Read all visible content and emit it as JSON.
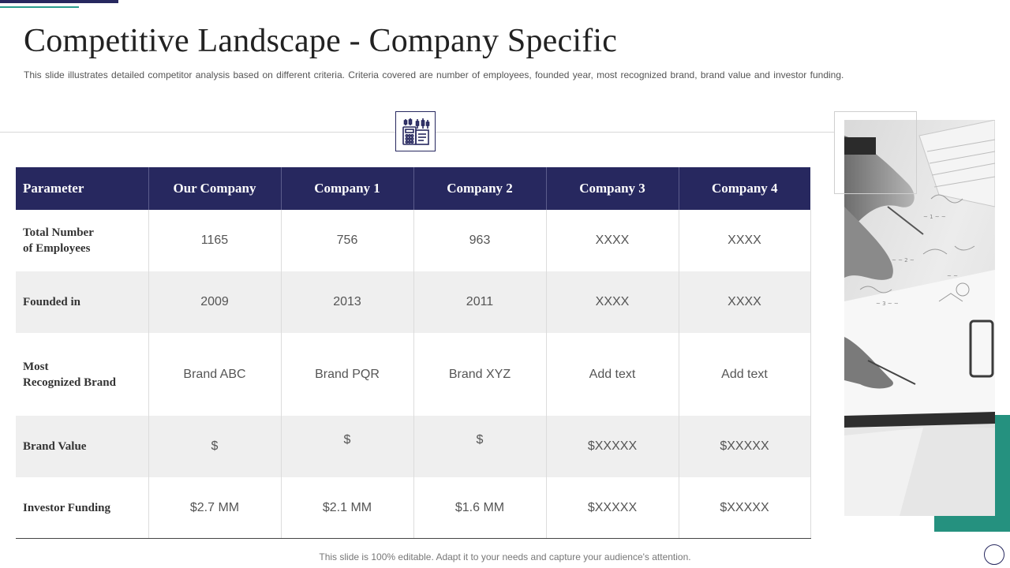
{
  "slide": {
    "title": "Competitive Landscape - Company Specific",
    "subtitle": "This slide illustrates detailed competitor analysis based on different criteria. Criteria covered  are number of employees, founded year, most recognized brand,  brand value and investor funding.",
    "footer": "This slide is 100% editable. Adapt it to your needs and capture your audience's attention."
  },
  "table": {
    "headers": [
      "Parameter",
      "Our Company",
      "Company 1",
      "Company 2",
      "Company 3",
      "Company 4"
    ],
    "rows": [
      {
        "param_line1": "Total Number",
        "param_line2": "of Employees",
        "values": [
          "1165",
          "756",
          "963",
          "XXXX",
          "XXXX"
        ]
      },
      {
        "param_line1": "Founded  in",
        "param_line2": "",
        "values": [
          "2009",
          "2013",
          "2011",
          "XXXX",
          "XXXX"
        ]
      },
      {
        "param_line1": "Most",
        "param_line2": "Recognized Brand",
        "values": [
          "Brand ABC",
          "Brand PQR",
          "Brand XYZ",
          "Add text",
          "Add text"
        ]
      },
      {
        "param_line1": "Brand Value",
        "param_line2": "",
        "values": [
          "$",
          "$",
          "$",
          "$XXXXX",
          "$XXXXX"
        ]
      },
      {
        "param_line1": "Investor Funding",
        "param_line2": "",
        "values": [
          "$2.7 MM",
          "$2.1 MM",
          "$1.6 MM",
          "$XXXXX",
          "$XXXXX"
        ]
      }
    ]
  },
  "icons": {
    "header_icon": "calculator-chart-icon",
    "corner": "circle-icon"
  },
  "colors": {
    "navy": "#27285f",
    "teal": "#25917f",
    "row_grey": "#efefef"
  }
}
